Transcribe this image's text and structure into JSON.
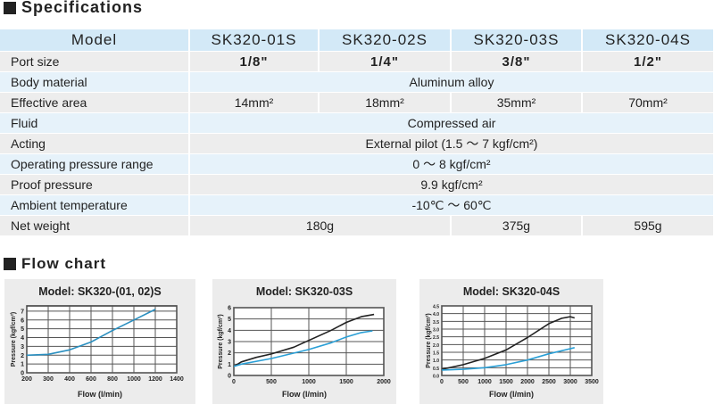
{
  "specifications": {
    "title": "Specifications",
    "header": {
      "label": "Model",
      "models": [
        "SK320-01S",
        "SK320-02S",
        "SK320-03S",
        "SK320-04S"
      ]
    },
    "rows": {
      "port_size": {
        "label": "Port size",
        "values": [
          "1/8\"",
          "1/4\"",
          "3/8\"",
          "1/2\""
        ]
      },
      "body_material": {
        "label": "Body material",
        "value": "Aluminum alloy"
      },
      "effective_area": {
        "label": "Effective area",
        "values": [
          "14mm²",
          "18mm²",
          "35mm²",
          "70mm²"
        ]
      },
      "fluid": {
        "label": "Fluid",
        "value": "Compressed air"
      },
      "acting": {
        "label": "Acting",
        "value": "External pilot  (1.5 ～ 7 kgf/cm²)"
      },
      "operating_pressure": {
        "label": "Operating pressure range",
        "value": "0 ～ 8 kgf/cm²"
      },
      "proof_pressure": {
        "label": "Proof pressure",
        "value": "9.9 kgf/cm²"
      },
      "ambient_temperature": {
        "label": "Ambient temperature",
        "value": "-10℃ ～ 60℃"
      },
      "net_weight": {
        "label": "Net weight",
        "values": [
          "180g",
          "375g",
          "595g"
        ]
      }
    }
  },
  "flow_chart": {
    "title": "Flow chart"
  },
  "colors": {
    "line_black": "#222222",
    "line_blue": "#2a9fd6",
    "header_bg": "#d3e9f7"
  },
  "chart_data": [
    {
      "type": "line",
      "title": "Model: SK320-(01, 02)S",
      "xlabel": "Flow (l/min)",
      "ylabel": "Pressure (kgf/cm²)",
      "x_scale": "categorical-ticks",
      "xticks": [
        200,
        300,
        400,
        600,
        800,
        1000,
        1200,
        1400
      ],
      "yticks": [
        0,
        1,
        2,
        3,
        4,
        5,
        6,
        7
      ],
      "ylim": [
        0,
        7.6
      ],
      "grid": true,
      "series": [
        {
          "color": "#2a8fc0",
          "x": [
            200,
            300,
            400,
            600,
            800,
            1000,
            1200
          ],
          "y": [
            2.0,
            2.1,
            2.6,
            3.5,
            4.8,
            6.0,
            7.2
          ]
        }
      ]
    },
    {
      "type": "line",
      "title": "Model: SK320-03S",
      "xlabel": "Flow (l/min)",
      "ylabel": "Pressure (kgf/cm²)",
      "xticks": [
        0,
        500,
        1000,
        1500,
        2000
      ],
      "yticks": [
        0,
        1,
        2,
        3,
        4,
        5,
        6
      ],
      "xlim": [
        0,
        2000
      ],
      "ylim": [
        0,
        6
      ],
      "grid": true,
      "series": [
        {
          "color": "#222222",
          "x": [
            0,
            100,
            300,
            500,
            800,
            1000,
            1300,
            1500,
            1700,
            1870
          ],
          "y": [
            0.8,
            1.2,
            1.6,
            1.9,
            2.5,
            3.1,
            4.0,
            4.7,
            5.2,
            5.4
          ]
        },
        {
          "color": "#2a9fd6",
          "x": [
            0,
            100,
            500,
            1000,
            1300,
            1500,
            1700,
            1850
          ],
          "y": [
            0.8,
            1.0,
            1.5,
            2.3,
            2.9,
            3.4,
            3.8,
            3.95
          ]
        }
      ]
    },
    {
      "type": "line",
      "title": "Model: SK320-04S",
      "xlabel": "Flow (l/min)",
      "ylabel": "Pressure (kgf/cm²)",
      "xticks": [
        0,
        500,
        1000,
        1500,
        2000,
        2500,
        3000,
        3500
      ],
      "yticks": [
        0,
        0.5,
        1.0,
        1.5,
        2.0,
        2.5,
        3.0,
        3.5,
        4.0,
        4.5
      ],
      "xlim": [
        0,
        3500
      ],
      "ylim": [
        0,
        4.5
      ],
      "grid": true,
      "series": [
        {
          "color": "#222222",
          "x": [
            0,
            500,
            1000,
            1500,
            2000,
            2500,
            2800,
            3000,
            3100
          ],
          "y": [
            0.4,
            0.7,
            1.1,
            1.65,
            2.45,
            3.35,
            3.7,
            3.8,
            3.72
          ]
        },
        {
          "color": "#2a9fd6",
          "x": [
            0,
            500,
            1000,
            1500,
            2000,
            2500,
            3100
          ],
          "y": [
            0.35,
            0.4,
            0.5,
            0.7,
            1.0,
            1.4,
            1.8
          ]
        }
      ]
    }
  ]
}
